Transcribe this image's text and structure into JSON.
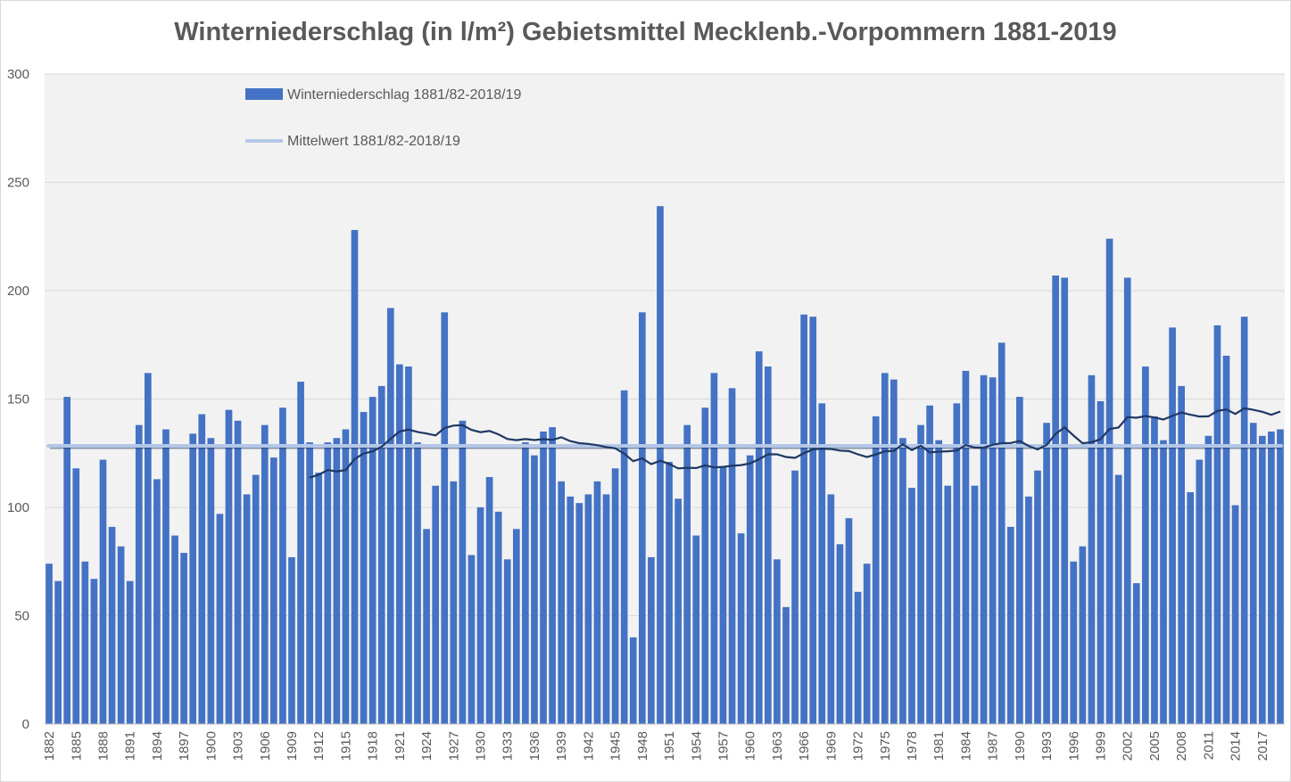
{
  "chart_data": {
    "type": "bar",
    "title": "Winterniederschlag (in l/m²) Gebietsmittel Mecklenb.-Vorpommern 1881-2019",
    "xlabel": "",
    "ylabel": "",
    "ylim": [
      0,
      300
    ],
    "yticks": [
      0,
      50,
      100,
      150,
      200,
      250,
      300
    ],
    "grid": true,
    "legend_position": "top-left",
    "first_year": 1882,
    "x_label_step": 3,
    "series": [
      {
        "name": "Winterniederschlag 1881/82-2018/19",
        "type": "bar",
        "color": "#4472C4",
        "values": [
          74,
          66,
          151,
          118,
          75,
          67,
          122,
          91,
          82,
          66,
          138,
          162,
          113,
          136,
          87,
          79,
          134,
          143,
          132,
          97,
          145,
          140,
          106,
          115,
          138,
          123,
          146,
          77,
          158,
          130,
          116,
          130,
          132,
          136,
          228,
          144,
          151,
          156,
          192,
          166,
          165,
          130,
          90,
          110,
          190,
          112,
          140,
          78,
          100,
          114,
          98,
          76,
          90,
          130,
          124,
          135,
          137,
          112,
          105,
          102,
          106,
          112,
          106,
          118,
          154,
          40,
          190,
          77,
          239,
          121,
          104,
          138,
          87,
          146,
          162,
          119,
          155,
          88,
          124,
          172,
          165,
          76,
          54,
          117,
          189,
          188,
          148,
          106,
          83,
          95,
          61,
          74,
          142,
          162,
          159,
          132,
          109,
          138,
          147,
          131,
          110,
          148,
          163,
          110,
          161,
          160,
          176,
          91,
          151,
          105,
          117,
          139,
          207,
          206,
          75,
          82,
          161,
          149,
          224,
          115,
          206,
          65,
          165,
          142,
          131,
          183,
          156,
          107,
          122,
          133,
          184,
          170,
          101,
          188,
          139,
          133,
          135,
          136
        ]
      },
      {
        "name": "Mittelwert 1881/82-2018/19",
        "type": "line",
        "color": "#B4C7E7",
        "value": 128.4
      },
      {
        "name": "",
        "type": "moving_average",
        "color": "#1F3864",
        "window": 30
      }
    ]
  }
}
